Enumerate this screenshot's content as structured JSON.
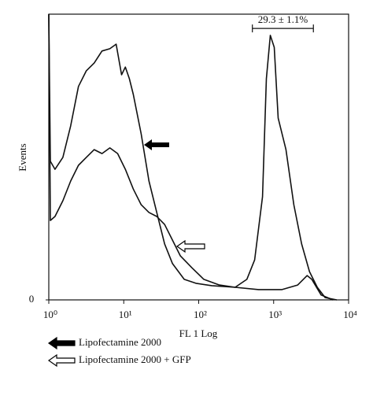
{
  "chart_data": {
    "type": "line",
    "xlabel": "FL 1 Log",
    "ylabel": "Events",
    "xscale": "log",
    "xlim": [
      1,
      10000
    ],
    "xticks": [
      {
        "value": 1,
        "label": "10⁰"
      },
      {
        "value": 10,
        "label": "10¹"
      },
      {
        "value": 100,
        "label": "10²"
      },
      {
        "value": 1000,
        "label": "10³"
      },
      {
        "value": 10000,
        "label": "10⁴"
      }
    ],
    "ylim": [
      0,
      100
    ],
    "yticks": [
      0
    ],
    "legend": "bottom-left",
    "annotations": [
      {
        "text": "29.3 ± 1.1%",
        "x_range": [
          520,
          3390
        ],
        "y": 95
      }
    ],
    "series": [
      {
        "name": "Lipofectamine 2000",
        "color": "#111111",
        "legend_fill": "#000000",
        "x": [
          1,
          1.05,
          1.21,
          1.54,
          1.96,
          2.49,
          3.17,
          4.03,
          5.13,
          6.53,
          7.91,
          9.36,
          10.5,
          11.9,
          13.4,
          17.1,
          21.7,
          27.6,
          35.1,
          44.7,
          64.1,
          91.9,
          149,
          306,
          629,
          1295,
          2094,
          2794,
          3229,
          4306,
          6180
        ],
        "values": [
          100,
          48.5,
          45.7,
          49.9,
          60.9,
          74.7,
          80.2,
          82.9,
          87.1,
          87.9,
          89.5,
          78.8,
          81.5,
          77.4,
          71.9,
          58.1,
          41.6,
          30.6,
          19.6,
          12.7,
          7.2,
          5.8,
          5.0,
          4.4,
          3.6,
          3.6,
          5.2,
          8.5,
          7.2,
          1.7,
          0
        ]
      },
      {
        "name": "Lipofectamine 2000 + GFP",
        "color": "#111111",
        "legend_fill": "#ffffff",
        "x": [
          1,
          1.05,
          1.21,
          1.54,
          1.96,
          2.49,
          3.17,
          4.03,
          5.13,
          6.53,
          8.3,
          10.5,
          13.4,
          17.1,
          21.7,
          27.6,
          35.1,
          44.7,
          56.9,
          81.5,
          117,
          189,
          306,
          439,
          558,
          710,
          800,
          903,
          1018,
          1148,
          1460,
          1858,
          2361,
          3006,
          3819,
          4860,
          6966
        ],
        "values": [
          100,
          27.8,
          29.2,
          34.7,
          41.6,
          47.1,
          49.9,
          52.6,
          51.2,
          53.2,
          51.2,
          45.7,
          38.8,
          33.3,
          30.6,
          29.2,
          26.4,
          20.9,
          15.4,
          11.2,
          7.2,
          5.2,
          4.4,
          7.2,
          14.0,
          36.1,
          77.4,
          92.6,
          88.4,
          63.6,
          52.6,
          33.3,
          19.6,
          9.9,
          4.4,
          0.8,
          0
        ]
      }
    ]
  }
}
